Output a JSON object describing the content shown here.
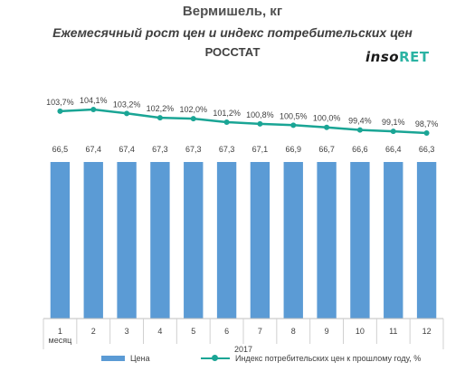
{
  "header": {
    "title": "Вермишель, кг",
    "subtitle": "Ежемесячный рост цен и индекс потребительских цен",
    "source": "РОССТАТ",
    "brand_part1": "inso",
    "brand_part2": "RET"
  },
  "legend": {
    "bar_label": "Цена",
    "line_label": "Индекс потребительских цен к прошлому году, %"
  },
  "chart_data": {
    "type": "bar",
    "categories": [
      "1",
      "2",
      "3",
      "4",
      "5",
      "6",
      "7",
      "8",
      "9",
      "10",
      "11",
      "12"
    ],
    "first_category_sublabel": "месяц",
    "x_group_label": "2017",
    "series": [
      {
        "name": "Цена",
        "type": "bar",
        "values": [
          66.5,
          67.4,
          67.4,
          67.3,
          67.3,
          67.3,
          67.1,
          66.9,
          66.7,
          66.6,
          66.4,
          66.3
        ],
        "labels": [
          "66,5",
          "67,4",
          "67,4",
          "67,3",
          "67,3",
          "67,3",
          "67,1",
          "66,9",
          "66,7",
          "66,6",
          "66,4",
          "66,3"
        ],
        "color": "#5b9bd5"
      },
      {
        "name": "Индекс потребительских цен к прошлому году, %",
        "type": "line",
        "values": [
          103.7,
          104.1,
          103.2,
          102.2,
          102.0,
          101.2,
          100.8,
          100.5,
          100.0,
          99.4,
          99.1,
          98.7
        ],
        "labels": [
          "103,7%",
          "104,1%",
          "103,2%",
          "102,2%",
          "102,0%",
          "101,2%",
          "100,8%",
          "100,5%",
          "100,0%",
          "99,4%",
          "99,1%",
          "98,7%"
        ],
        "color": "#1aa595"
      }
    ]
  }
}
